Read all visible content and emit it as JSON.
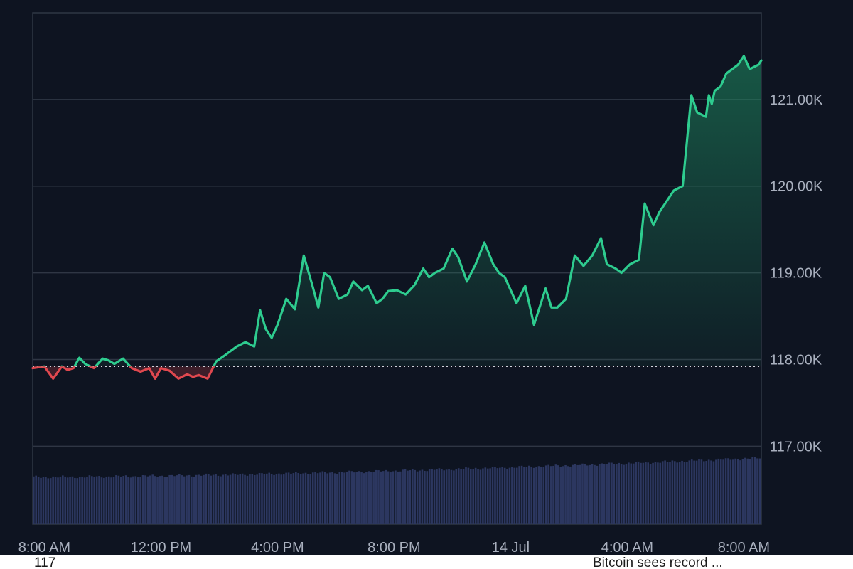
{
  "chart_data": {
    "type": "area",
    "y_tick_labels": [
      "121.00K",
      "120.00K",
      "119.00K",
      "118.00K",
      "117.00K"
    ],
    "y_ticks": [
      121000,
      120000,
      119000,
      118000,
      117000
    ],
    "x_tick_labels": [
      "8:00 AM",
      "12:00 PM",
      "4:00 PM",
      "8:00 PM",
      "14 Jul",
      "4:00 AM",
      "8:00 AM"
    ],
    "x_ticks_hours": [
      8,
      12,
      16,
      20,
      24,
      28,
      32
    ],
    "xlim_hours": [
      7.6,
      32.6
    ],
    "ylim": [
      116100,
      122000
    ],
    "reference_price": 117920,
    "grid": "horizontal",
    "price_series": {
      "x_hours": [
        7.6,
        8.0,
        8.3,
        8.6,
        8.8,
        9.0,
        9.2,
        9.4,
        9.7,
        10.0,
        10.2,
        10.4,
        10.7,
        11.0,
        11.3,
        11.6,
        11.8,
        12.0,
        12.3,
        12.6,
        12.9,
        13.1,
        13.3,
        13.6,
        13.9,
        14.2,
        14.6,
        14.9,
        15.2,
        15.4,
        15.6,
        15.8,
        16.0,
        16.3,
        16.6,
        16.9,
        17.2,
        17.4,
        17.6,
        17.8,
        18.1,
        18.4,
        18.6,
        18.9,
        19.1,
        19.4,
        19.6,
        19.8,
        20.1,
        20.4,
        20.7,
        21.0,
        21.2,
        21.4,
        21.7,
        22.0,
        22.2,
        22.5,
        22.8,
        23.1,
        23.4,
        23.6,
        23.8,
        24.2,
        24.5,
        24.8,
        25.2,
        25.4,
        25.6,
        25.9,
        26.2,
        26.5,
        26.8,
        27.1,
        27.3,
        27.6,
        27.8,
        28.1,
        28.4,
        28.6,
        28.9,
        29.1,
        29.3,
        29.6,
        29.9,
        30.2,
        30.4,
        30.7,
        30.8,
        30.9,
        31.0,
        31.2,
        31.4,
        31.6,
        31.8,
        32.0,
        32.2,
        32.5,
        32.6
      ],
      "y": [
        117900,
        117920,
        117780,
        117920,
        117880,
        117900,
        118020,
        117950,
        117900,
        118010,
        117990,
        117950,
        118010,
        117900,
        117860,
        117900,
        117780,
        117900,
        117870,
        117780,
        117830,
        117800,
        117820,
        117780,
        117980,
        118050,
        118150,
        118200,
        118150,
        118570,
        118350,
        118250,
        118400,
        118700,
        118580,
        119200,
        118850,
        118600,
        119000,
        118950,
        118700,
        118750,
        118900,
        118800,
        118850,
        118650,
        118700,
        118790,
        118800,
        118750,
        118860,
        119050,
        118950,
        119000,
        119050,
        119280,
        119180,
        118900,
        119100,
        119350,
        119100,
        119000,
        118950,
        118650,
        118850,
        118400,
        118820,
        118600,
        118600,
        118700,
        119200,
        119080,
        119200,
        119400,
        119100,
        119050,
        119000,
        119100,
        119150,
        119800,
        119550,
        119700,
        119800,
        119950,
        120000,
        121050,
        120850,
        120800,
        121050,
        120950,
        121100,
        121150,
        121300,
        121350,
        121400,
        121500,
        121350,
        121400,
        121450
      ]
    },
    "volume_series": {
      "x_range_hours": [
        7.6,
        32.6
      ],
      "start_level": 0.62,
      "end_level": 0.87,
      "unit": "fraction of volume panel height"
    },
    "colors": {
      "up": "#2ecc8f",
      "down": "#e0484f",
      "volume": "#2c3760",
      "grid": "#2f3644",
      "background": "#0e1421"
    }
  },
  "captions": {
    "left": "117",
    "right": "Bitcoin sees record ..."
  }
}
